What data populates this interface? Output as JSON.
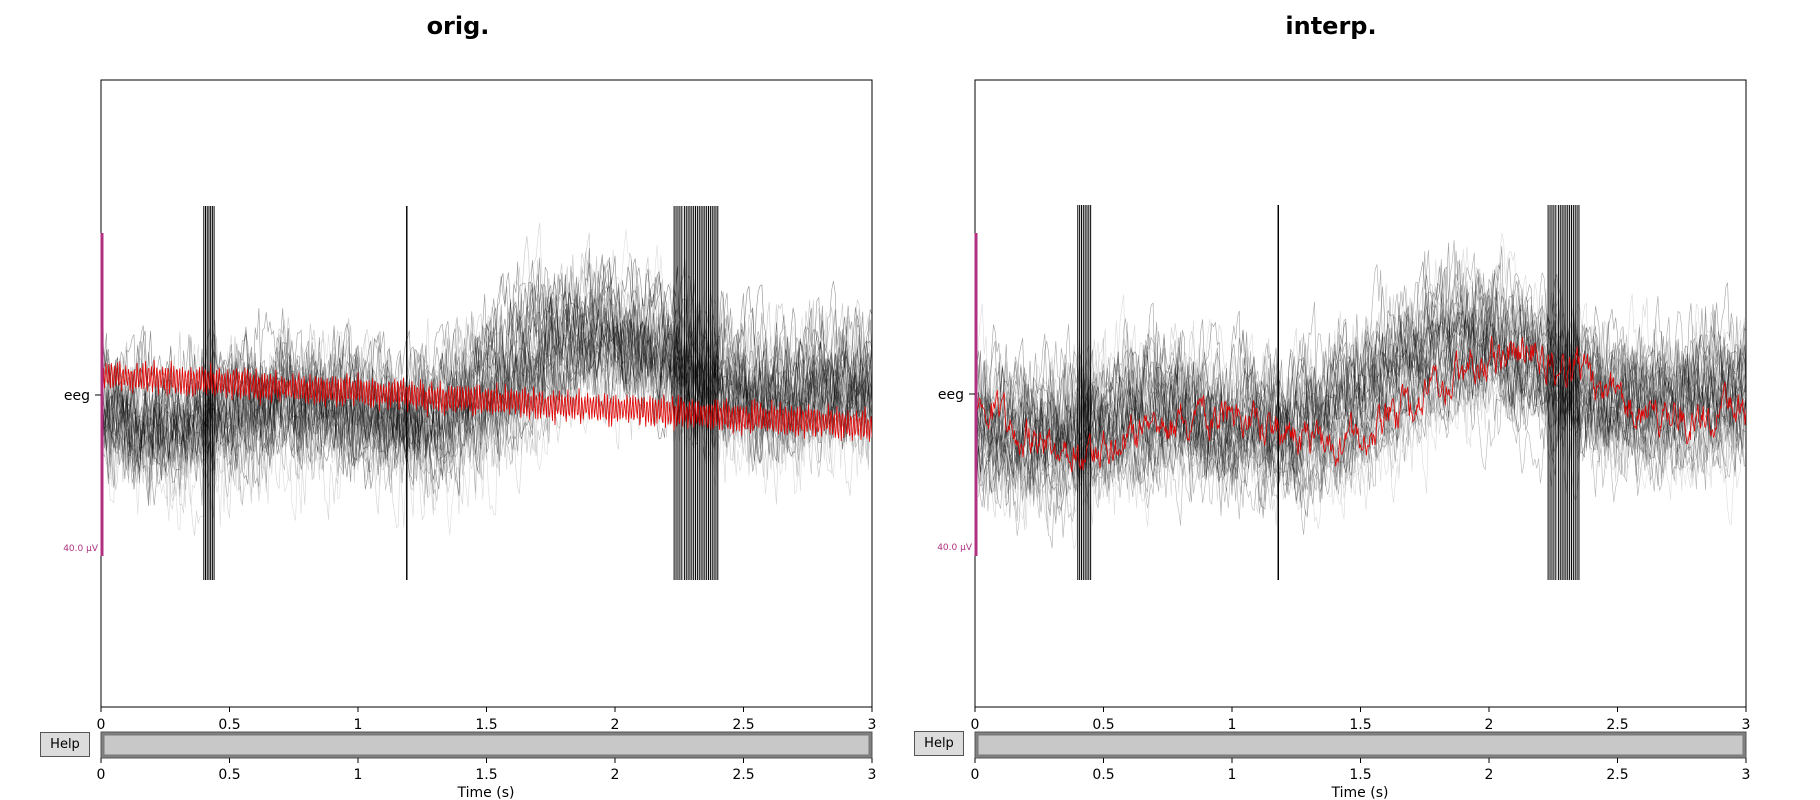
{
  "panels": [
    {
      "title": "orig.",
      "channel_label": "eeg",
      "scale_label": "40.0 µV",
      "help_label": "Help",
      "xlabel": "",
      "scroll_xlabel": "Time (s)"
    },
    {
      "title": "interp.",
      "channel_label": "eeg",
      "scale_label": "40.0 µV",
      "help_label": "Help",
      "xlabel": "",
      "scroll_xlabel": "Time (s)"
    }
  ],
  "chart_data": [
    {
      "type": "line",
      "title": "orig.",
      "xlabel": "",
      "xlim": [
        0,
        3
      ],
      "x_ticks": [
        "0",
        "0.5",
        "1",
        "1.5",
        "2",
        "2.5",
        "3"
      ],
      "y_ticks": [
        "eeg"
      ],
      "scale_bar": "40.0 µV",
      "series": [
        {
          "color": "#000000",
          "style": "overlaid butterfly traces (many channels, low alpha)"
        },
        {
          "color": "#e00000",
          "style": "single highlighted channel",
          "x": [
            0,
            0.5,
            1,
            1.5,
            2,
            2.5,
            3
          ],
          "y_frac": [
            0.56,
            0.55,
            0.54,
            0.52,
            0.5,
            0.47,
            0.44
          ]
        }
      ],
      "colors": {
        "trace": "#000000",
        "highlight": "#e00000",
        "scale": "#b0307f"
      }
    },
    {
      "type": "line",
      "title": "interp.",
      "xlabel": "",
      "xlim": [
        0,
        3
      ],
      "x_ticks": [
        "0",
        "0.5",
        "1",
        "1.5",
        "2",
        "2.5",
        "3"
      ],
      "y_ticks": [
        "eeg"
      ],
      "scale_bar": "40.0 µV",
      "series": [
        {
          "color": "#000000",
          "style": "overlaid butterfly traces (many channels, low alpha)"
        },
        {
          "color": "#e00000",
          "style": "interpolated channel following the black bundle"
        }
      ],
      "colors": {
        "trace": "#000000",
        "highlight": "#e00000",
        "scale": "#b0307f"
      }
    }
  ],
  "scrollbars": [
    {
      "x_ticks": [
        "0",
        "0.5",
        "1",
        "1.5",
        "2",
        "2.5",
        "3"
      ],
      "xlabel": "Time (s)",
      "xlim": [
        0,
        3
      ]
    },
    {
      "x_ticks": [
        "0",
        "0.5",
        "1",
        "1.5",
        "2",
        "2.5",
        "3"
      ],
      "xlabel": "Time (s)",
      "xlim": [
        0,
        3
      ]
    }
  ]
}
